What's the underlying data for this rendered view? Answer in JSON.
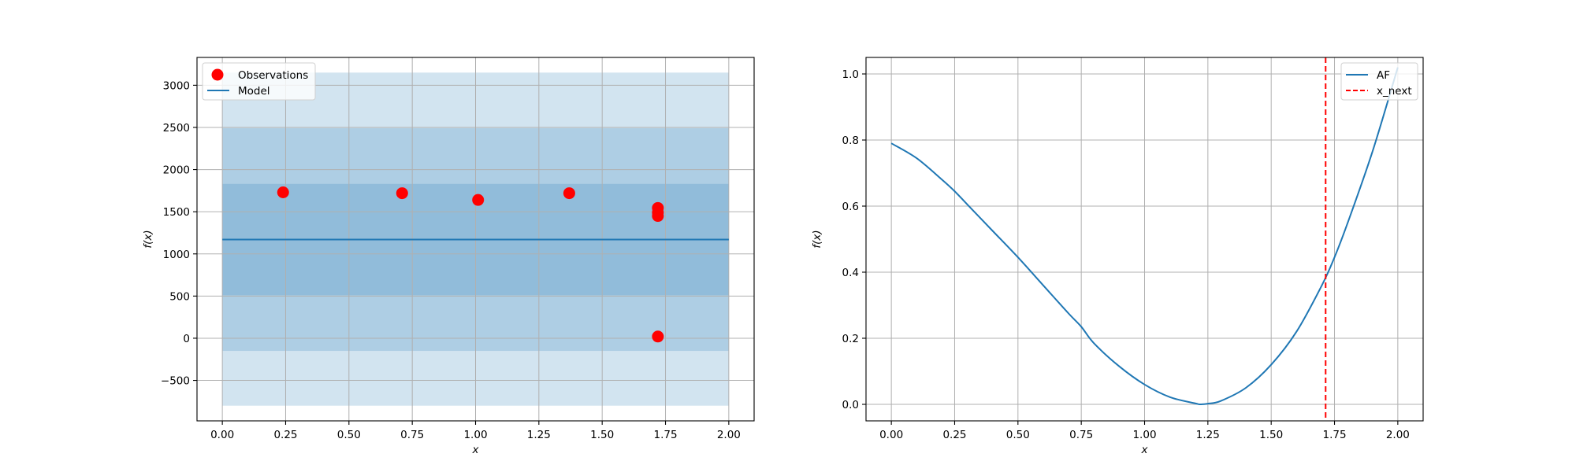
{
  "chart_data": [
    {
      "type": "scatter",
      "xlabel": "x",
      "ylabel": "f(x)",
      "xlim": [
        -0.1,
        2.1
      ],
      "ylim": [
        -980,
        3330
      ],
      "xticks": [
        0.0,
        0.25,
        0.5,
        0.75,
        1.0,
        1.25,
        1.5,
        1.75,
        2.0
      ],
      "xtick_labels": [
        "0.00",
        "0.25",
        "0.50",
        "0.75",
        "1.00",
        "1.25",
        "1.50",
        "1.75",
        "2.00"
      ],
      "yticks": [
        -500,
        0,
        500,
        1000,
        1500,
        2000,
        2500,
        3000
      ],
      "ytick_labels": [
        "−500",
        "0",
        "500",
        "1000",
        "1500",
        "2000",
        "2500",
        "3000"
      ],
      "grid": true,
      "legend_position": "top-left",
      "legend": [
        "Observations",
        "Model"
      ],
      "observations": {
        "x": [
          0.24,
          0.71,
          1.01,
          1.37,
          1.72,
          1.72,
          1.72,
          1.72
        ],
        "y": [
          1730,
          1720,
          1640,
          1720,
          1545,
          1490,
          1450,
          20
        ],
        "color": "#ff0000"
      },
      "model": {
        "x": [
          0.0,
          2.0
        ],
        "mean": 1170,
        "color": "#1f77b4",
        "bands": [
          {
            "lower": 510,
            "upper": 1830
          },
          {
            "lower": -150,
            "upper": 2490
          },
          {
            "lower": -800,
            "upper": 3150
          }
        ]
      }
    },
    {
      "type": "line",
      "xlabel": "x",
      "ylabel": "f(x)",
      "xlim": [
        -0.1,
        2.1
      ],
      "ylim": [
        -0.05,
        1.05
      ],
      "xticks": [
        0.0,
        0.25,
        0.5,
        0.75,
        1.0,
        1.25,
        1.5,
        1.75,
        2.0
      ],
      "xtick_labels": [
        "0.00",
        "0.25",
        "0.50",
        "0.75",
        "1.00",
        "1.25",
        "1.50",
        "1.75",
        "2.00"
      ],
      "yticks": [
        0.0,
        0.2,
        0.4,
        0.6,
        0.8,
        1.0
      ],
      "ytick_labels": [
        "0.0",
        "0.2",
        "0.4",
        "0.6",
        "0.8",
        "1.0"
      ],
      "grid": true,
      "legend_position": "top-right",
      "legend": [
        "AF",
        "x_next"
      ],
      "series": [
        {
          "name": "AF",
          "color": "#1f77b4",
          "x": [
            0.0,
            0.1,
            0.2,
            0.25,
            0.3,
            0.4,
            0.5,
            0.6,
            0.7,
            0.75,
            0.8,
            0.9,
            1.0,
            1.1,
            1.2,
            1.22,
            1.25,
            1.3,
            1.4,
            1.5,
            1.6,
            1.7,
            1.75,
            1.8,
            1.9,
            2.0
          ],
          "y": [
            0.79,
            0.745,
            0.68,
            0.645,
            0.605,
            0.525,
            0.445,
            0.36,
            0.275,
            0.235,
            0.185,
            0.115,
            0.06,
            0.022,
            0.003,
            0.0,
            0.002,
            0.01,
            0.05,
            0.12,
            0.22,
            0.36,
            0.445,
            0.545,
            0.765,
            1.02
          ]
        }
      ],
      "vline": {
        "name": "x_next",
        "x": 1.715,
        "color": "#ff0000"
      }
    }
  ]
}
